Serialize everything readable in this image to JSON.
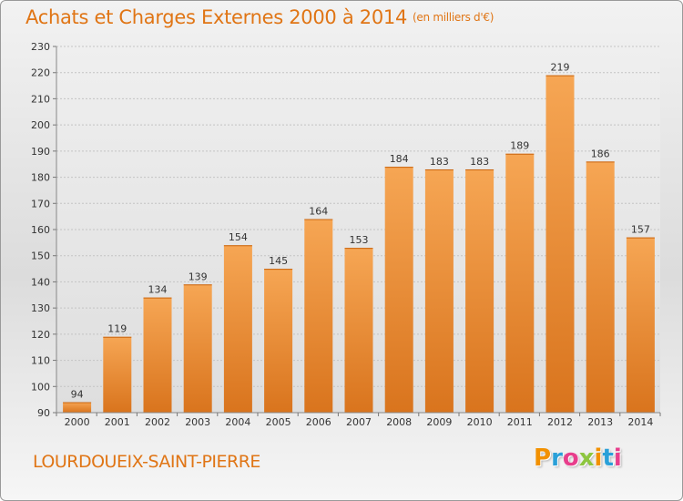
{
  "header": {
    "title": "Achats et Charges Externes 2000 à 2014",
    "unit": "(en milliers d'€)"
  },
  "footer": {
    "place": "LOURDOUEIX-SAINT-PIERRE",
    "logo": {
      "text": "Proxiti",
      "letters": [
        "P",
        "r",
        "o",
        "x",
        "i",
        "t",
        "i"
      ],
      "colors": [
        "#f29100",
        "#2aa0d8",
        "#e83e8c",
        "#8dc63f",
        "#f29100",
        "#2aa0d8",
        "#e83e8c"
      ]
    }
  },
  "colors": {
    "accent": "#e07515",
    "bar_light": "#f6a654",
    "bar_dark": "#d9741d"
  },
  "chart_data": {
    "type": "bar",
    "title": "Achats et Charges Externes 2000 à 2014",
    "subtitle": "(en milliers d'€)",
    "xlabel": "",
    "ylabel": "",
    "categories": [
      "2000",
      "2001",
      "2002",
      "2003",
      "2004",
      "2005",
      "2006",
      "2007",
      "2008",
      "2009",
      "2010",
      "2011",
      "2012",
      "2013",
      "2014"
    ],
    "values": [
      94,
      119,
      134,
      139,
      154,
      145,
      164,
      153,
      184,
      183,
      183,
      189,
      219,
      186,
      157
    ],
    "ylim": [
      90,
      230
    ],
    "yticks": [
      90,
      100,
      110,
      120,
      130,
      140,
      150,
      160,
      170,
      180,
      190,
      200,
      210,
      220,
      230
    ],
    "grid": true,
    "legend": "none"
  }
}
